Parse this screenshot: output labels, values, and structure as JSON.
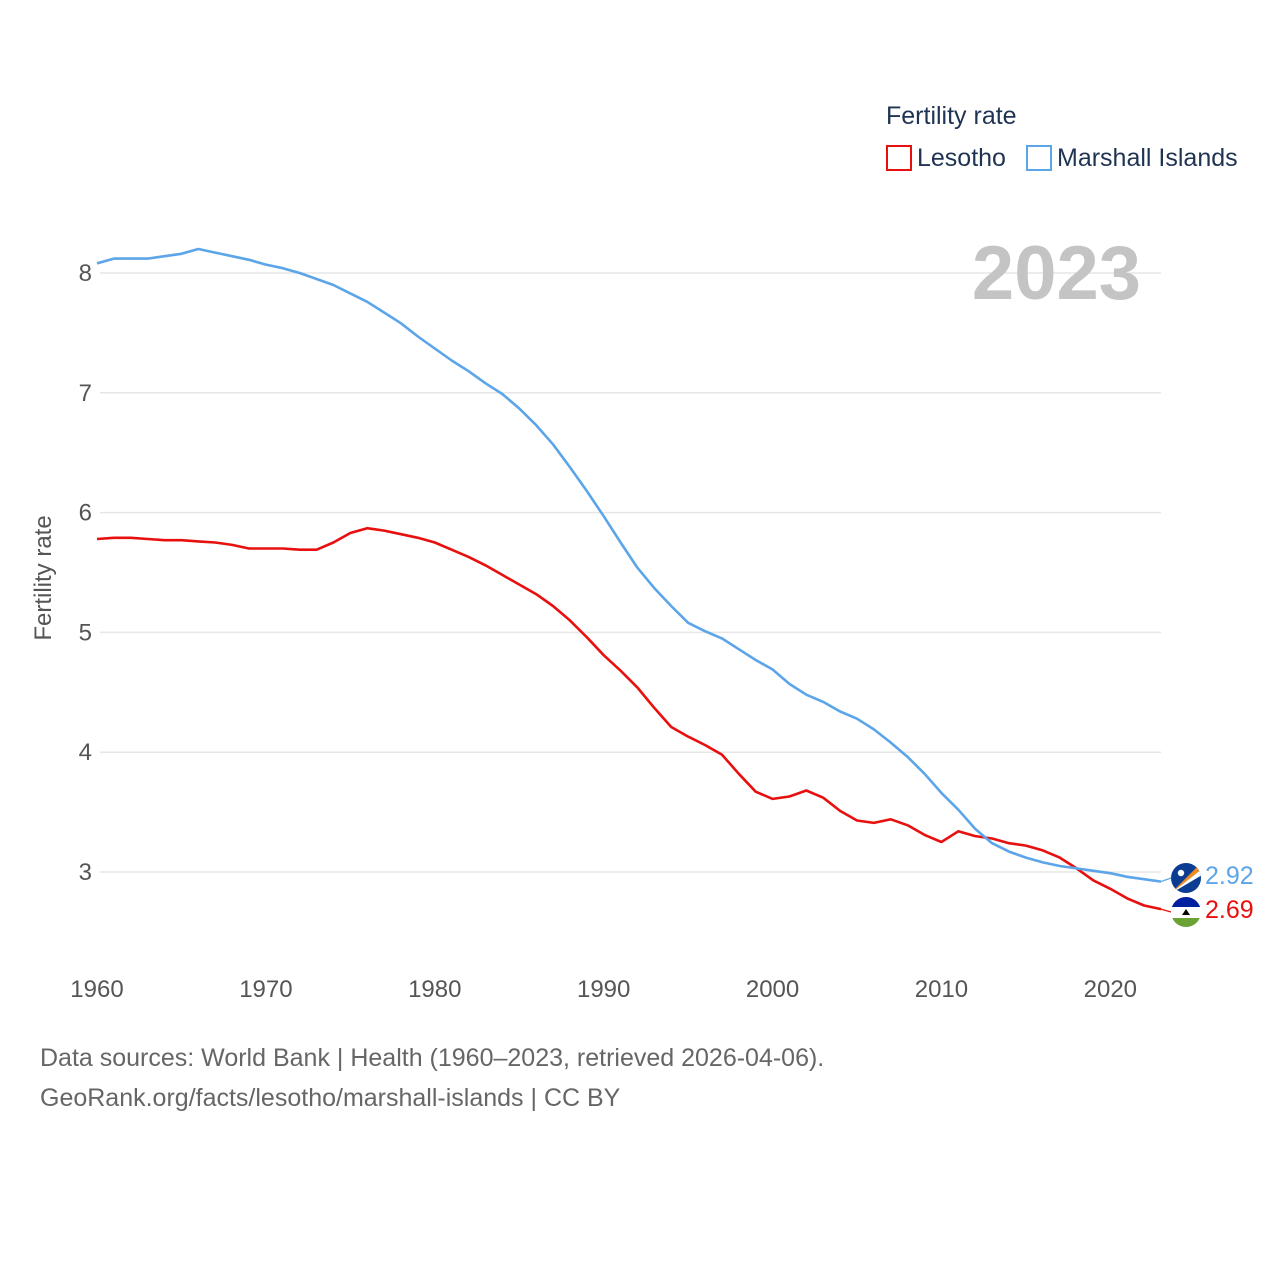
{
  "chart_data": {
    "type": "line",
    "title": "Fertility rate",
    "ylabel": "Fertility rate",
    "xlabel": "",
    "xlim": [
      1960,
      2023
    ],
    "ylim": [
      2.3,
      8.35
    ],
    "yticks": [
      3,
      4,
      5,
      6,
      7,
      8
    ],
    "xticks": [
      1960,
      1970,
      1980,
      1990,
      2000,
      2010,
      2020
    ],
    "grid": true,
    "legend_position": "top-right",
    "year_label": "2023",
    "x": [
      1960,
      1961,
      1962,
      1963,
      1964,
      1965,
      1966,
      1967,
      1968,
      1969,
      1970,
      1971,
      1972,
      1973,
      1974,
      1975,
      1976,
      1977,
      1978,
      1979,
      1980,
      1981,
      1982,
      1983,
      1984,
      1985,
      1986,
      1987,
      1988,
      1989,
      1990,
      1991,
      1992,
      1993,
      1994,
      1995,
      1996,
      1997,
      1998,
      1999,
      2000,
      2001,
      2002,
      2003,
      2004,
      2005,
      2006,
      2007,
      2008,
      2009,
      2010,
      2011,
      2012,
      2013,
      2014,
      2015,
      2016,
      2017,
      2018,
      2019,
      2020,
      2021,
      2022,
      2023
    ],
    "series": [
      {
        "name": "Lesotho",
        "color": "#e8100f",
        "end_label": "2.69",
        "values": [
          5.78,
          5.79,
          5.79,
          5.78,
          5.77,
          5.77,
          5.76,
          5.75,
          5.73,
          5.7,
          5.7,
          5.7,
          5.69,
          5.69,
          5.75,
          5.83,
          5.87,
          5.85,
          5.82,
          5.79,
          5.75,
          5.69,
          5.63,
          5.56,
          5.48,
          5.4,
          5.32,
          5.22,
          5.1,
          4.96,
          4.81,
          4.68,
          4.54,
          4.37,
          4.21,
          4.13,
          4.06,
          3.98,
          3.82,
          3.67,
          3.61,
          3.63,
          3.68,
          3.62,
          3.51,
          3.43,
          3.41,
          3.44,
          3.39,
          3.31,
          3.25,
          3.34,
          3.3,
          3.28,
          3.24,
          3.22,
          3.18,
          3.12,
          3.03,
          2.93,
          2.86,
          2.78,
          2.72,
          2.69
        ]
      },
      {
        "name": "Marshall Islands",
        "color": "#5ba5e8",
        "end_label": "2.92",
        "values": [
          8.08,
          8.12,
          8.12,
          8.12,
          8.14,
          8.16,
          8.2,
          8.17,
          8.14,
          8.11,
          8.07,
          8.04,
          8.0,
          7.95,
          7.9,
          7.83,
          7.76,
          7.67,
          7.58,
          7.47,
          7.37,
          7.27,
          7.18,
          7.08,
          6.99,
          6.87,
          6.73,
          6.57,
          6.38,
          6.18,
          5.97,
          5.75,
          5.54,
          5.37,
          5.22,
          5.08,
          5.01,
          4.95,
          4.86,
          4.77,
          4.69,
          4.57,
          4.48,
          4.42,
          4.34,
          4.28,
          4.19,
          4.08,
          3.96,
          3.82,
          3.66,
          3.52,
          3.36,
          3.24,
          3.17,
          3.12,
          3.08,
          3.05,
          3.03,
          3.01,
          2.99,
          2.96,
          2.94,
          2.92
        ]
      }
    ]
  },
  "footer": {
    "line1": "Data sources: World Bank | Health (1960–2023, retrieved 2026-04-06).",
    "line2": "GeoRank.org/facts/lesotho/marshall-islands | CC BY"
  },
  "icons": {
    "marshall_flag": "marshall-islands-flag-icon",
    "lesotho_flag": "lesotho-flag-icon"
  }
}
